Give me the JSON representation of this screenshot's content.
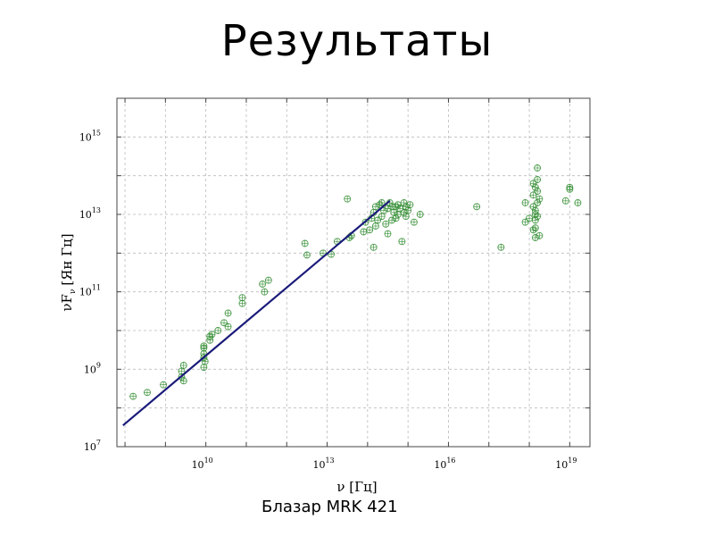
{
  "slide": {
    "title": "Результаты",
    "caption": "Блазар MRK 421"
  },
  "chart_data": {
    "type": "scatter",
    "xlabel": "ν [Гц]",
    "ylabel": "νF",
    "ylabel_sub": "ν",
    "ylabel_unit": "[Ян Гц]",
    "x_scale": "log",
    "y_scale": "log",
    "xlim_log10": [
      7.8,
      19.5
    ],
    "ylim_log10": [
      7,
      16
    ],
    "x_ticks": [
      {
        "base": "10",
        "exp": "10",
        "log10": 10
      },
      {
        "base": "10",
        "exp": "13",
        "log10": 13
      },
      {
        "base": "10",
        "exp": "16",
        "log10": 16
      },
      {
        "base": "10",
        "exp": "19",
        "log10": 19
      }
    ],
    "y_ticks": [
      {
        "base": "10",
        "exp": "7",
        "log10": 7
      },
      {
        "base": "10",
        "exp": "9",
        "log10": 9
      },
      {
        "base": "10",
        "exp": "11",
        "log10": 11
      },
      {
        "base": "10",
        "exp": "13",
        "log10": 13
      },
      {
        "base": "10",
        "exp": "15",
        "log10": 15
      }
    ],
    "grid": true,
    "colors": {
      "points": "#2e8b2e",
      "line": "#1a1a7a",
      "grid": "#bbbbbb"
    },
    "series": [
      {
        "kind": "points",
        "log10_points": [
          [
            8.2,
            8.3
          ],
          [
            8.55,
            8.4
          ],
          [
            8.95,
            8.6
          ],
          [
            9.4,
            8.95
          ],
          [
            9.4,
            8.8
          ],
          [
            9.45,
            9.1
          ],
          [
            9.45,
            8.7
          ],
          [
            9.95,
            9.4
          ],
          [
            9.95,
            9.55
          ],
          [
            9.95,
            9.3
          ],
          [
            9.95,
            9.05
          ],
          [
            9.95,
            9.6
          ],
          [
            9.98,
            9.2
          ],
          [
            10.1,
            9.75
          ],
          [
            10.1,
            9.85
          ],
          [
            10.15,
            9.9
          ],
          [
            10.3,
            10.0
          ],
          [
            10.45,
            10.2
          ],
          [
            10.55,
            10.1
          ],
          [
            10.55,
            10.45
          ],
          [
            10.9,
            10.7
          ],
          [
            10.9,
            10.85
          ],
          [
            11.4,
            11.2
          ],
          [
            11.45,
            11.0
          ],
          [
            11.55,
            11.3
          ],
          [
            12.45,
            12.25
          ],
          [
            12.5,
            11.95
          ],
          [
            12.9,
            12.0
          ],
          [
            13.25,
            12.3
          ],
          [
            13.5,
            13.4
          ],
          [
            13.1,
            11.97
          ],
          [
            13.55,
            12.4
          ],
          [
            13.6,
            12.45
          ],
          [
            13.9,
            12.55
          ],
          [
            13.95,
            12.8
          ],
          [
            14.05,
            12.6
          ],
          [
            14.15,
            12.15
          ],
          [
            14.1,
            12.9
          ],
          [
            14.15,
            13.05
          ],
          [
            14.2,
            12.7
          ],
          [
            14.2,
            13.2
          ],
          [
            14.25,
            12.85
          ],
          [
            14.3,
            13.25
          ],
          [
            14.35,
            12.95
          ],
          [
            14.35,
            13.3
          ],
          [
            14.4,
            13.1
          ],
          [
            14.45,
            12.75
          ],
          [
            14.5,
            13.15
          ],
          [
            14.5,
            12.5
          ],
          [
            14.55,
            13.3
          ],
          [
            14.6,
            12.85
          ],
          [
            14.6,
            13.2
          ],
          [
            14.65,
            13.05
          ],
          [
            14.7,
            13.2
          ],
          [
            14.7,
            12.9
          ],
          [
            14.75,
            13.25
          ],
          [
            14.75,
            13.0
          ],
          [
            14.8,
            13.15
          ],
          [
            14.85,
            12.3
          ],
          [
            14.9,
            13.3
          ],
          [
            14.9,
            13.05
          ],
          [
            14.95,
            12.95
          ],
          [
            14.95,
            13.2
          ],
          [
            15.0,
            13.1
          ],
          [
            15.05,
            13.25
          ],
          [
            15.3,
            13.0
          ],
          [
            15.15,
            12.8
          ],
          [
            16.7,
            13.2
          ],
          [
            17.3,
            12.15
          ],
          [
            17.9,
            12.8
          ],
          [
            17.9,
            13.3
          ],
          [
            18.0,
            12.9
          ],
          [
            18.1,
            12.6
          ],
          [
            18.1,
            13.8
          ],
          [
            18.1,
            13.5
          ],
          [
            18.1,
            13.2
          ],
          [
            18.15,
            13.0
          ],
          [
            18.15,
            12.4
          ],
          [
            18.15,
            12.65
          ],
          [
            18.15,
            13.7
          ],
          [
            18.15,
            13.1
          ],
          [
            18.15,
            12.85
          ],
          [
            18.2,
            13.6
          ],
          [
            18.2,
            13.3
          ],
          [
            18.2,
            12.95
          ],
          [
            18.2,
            14.2
          ],
          [
            18.2,
            13.9
          ],
          [
            18.25,
            12.45
          ],
          [
            18.25,
            13.4
          ],
          [
            18.9,
            13.35
          ],
          [
            19.0,
            13.7
          ],
          [
            19.0,
            13.65
          ],
          [
            19.2,
            13.3
          ]
        ]
      },
      {
        "kind": "line",
        "log10_points": [
          [
            7.95,
            7.55
          ],
          [
            14.55,
            13.35
          ]
        ]
      }
    ]
  }
}
